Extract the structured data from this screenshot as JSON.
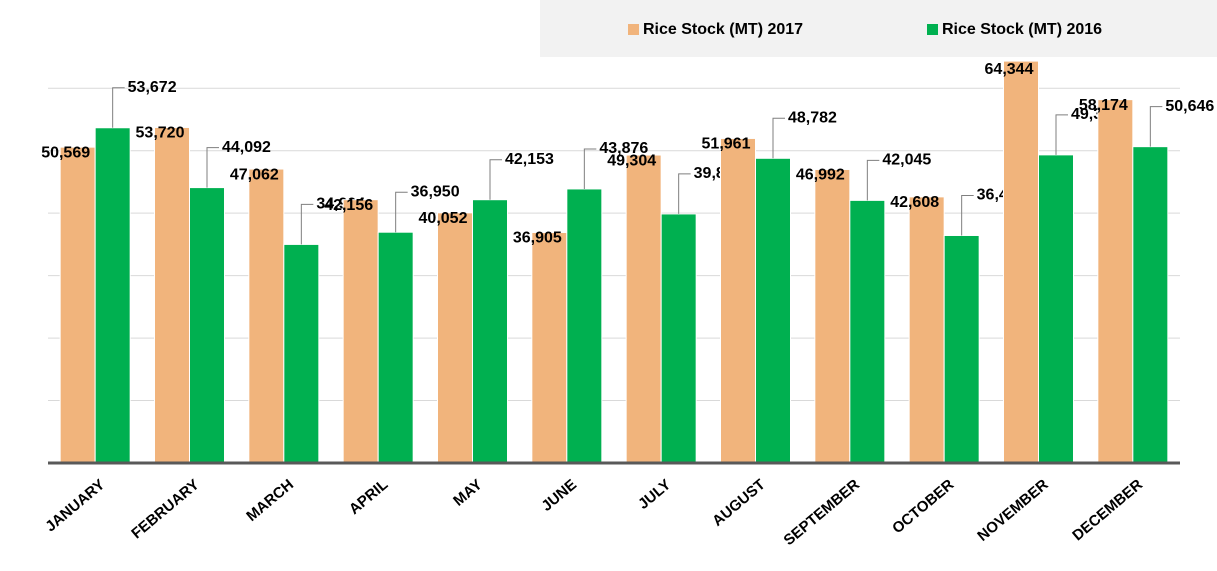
{
  "chart_data": {
    "type": "bar",
    "categories": [
      "JANUARY",
      "FEBRUARY",
      "MARCH",
      "APRIL",
      "MAY",
      "JUNE",
      "JULY",
      "AUGUST",
      "SEPTEMBER",
      "OCTOBER",
      "NOVEMBER",
      "DECEMBER"
    ],
    "series": [
      {
        "name": "Rice Stock (MT) 2017",
        "color": "#f1b47c",
        "values": [
          50569,
          53720,
          47062,
          42156,
          40052,
          36905,
          49304,
          51961,
          46992,
          42608,
          64344,
          58174
        ],
        "value_labels": [
          "50,569",
          "53,720",
          "47,062",
          "42,156",
          "40,052",
          "36,905",
          "49,304",
          "51,961",
          "46,992",
          "42,608",
          "64,344",
          "58,174"
        ]
      },
      {
        "name": "Rice Stock (MT) 2016",
        "color": "#00b050",
        "values": [
          53672,
          44092,
          34994,
          36950,
          42153,
          43876,
          39875,
          48782,
          42045,
          36424,
          49331,
          50646
        ],
        "value_labels": [
          "53,672",
          "44,092",
          "34,994",
          "36,950",
          "42,153",
          "43,876",
          "39,875",
          "48,782",
          "42,045",
          "36,424",
          "49,331",
          "50,646"
        ]
      }
    ],
    "ylim": [
      0,
      65000
    ],
    "yticks": [
      0,
      10000,
      20000,
      30000,
      40000,
      50000,
      60000
    ],
    "grid": true,
    "legend": "top-right"
  }
}
